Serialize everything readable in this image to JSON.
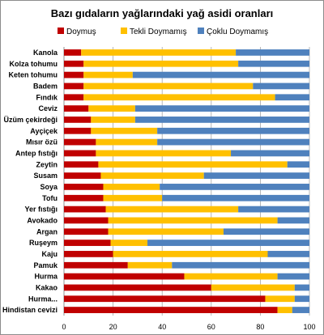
{
  "chart_data": {
    "type": "bar",
    "orientation": "horizontal",
    "stacked": true,
    "title": "Bazı gıdaların yağlarındaki yağ asidi oranları",
    "legend_position": "top",
    "xlim": [
      0,
      100
    ],
    "x_ticks": [
      "0",
      "20",
      "40",
      "60",
      "80",
      "100"
    ],
    "grid": true,
    "categories": [
      "Kanola",
      "Kolza tohumu",
      "Keten tohumu",
      "Badem",
      "Fındık",
      "Ceviz",
      "Üzüm çekirdeği",
      "Ayçiçek",
      "Mısır özü",
      "Antep fıstığı",
      "Zeytin",
      "Susam",
      "Soya",
      "Tofu",
      "Yer fıstığı",
      "Avokado",
      "Argan",
      "Ruşeym",
      "Kaju",
      "Pamuk",
      "Hurma",
      "Kakao",
      "Hurma...",
      "Hindistan cevizi"
    ],
    "series": [
      {
        "name": "Doymuş",
        "color": "#c00000",
        "values": [
          7,
          8,
          8,
          8,
          8,
          10,
          11,
          11,
          13,
          13,
          14,
          15,
          16,
          16,
          17,
          18,
          18,
          19,
          20,
          26,
          49,
          60,
          82,
          87
        ]
      },
      {
        "name": "Tekli Doymamış",
        "color": "#ffc000",
        "values": [
          63,
          63,
          20,
          69,
          78,
          19,
          18,
          27,
          25,
          55,
          77,
          42,
          23,
          24,
          54,
          69,
          47,
          15,
          63,
          18,
          38,
          34,
          12,
          6
        ]
      },
      {
        "name": "Çoklu Doymamış",
        "color": "#4f81bd",
        "values": [
          30,
          29,
          72,
          23,
          14,
          71,
          71,
          62,
          62,
          32,
          9,
          43,
          61,
          60,
          29,
          13,
          35,
          66,
          17,
          56,
          13,
          6,
          6,
          7
        ]
      }
    ]
  }
}
